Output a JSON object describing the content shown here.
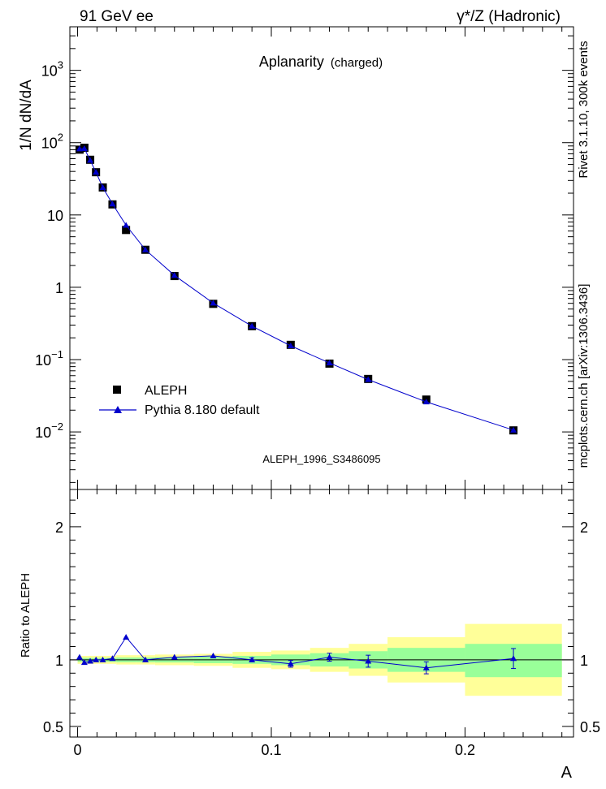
{
  "header": {
    "left": "91 GeV ee",
    "right_prefix": "γ*/Z",
    "right_suffix": "(Hadronic)"
  },
  "side": {
    "rivet": "Rivet 3.1.10,  300k events",
    "mcplots": "mcplots.cern.ch [arXiv:1306.3436]"
  },
  "analysis_id": "ALEPH_1996_S3486095",
  "chart_data": [
    {
      "type": "scatter",
      "title": "Aplanarity",
      "title_sub": "(charged)",
      "ylabel": "1/N dN/dA",
      "y_scale": "log",
      "ylim": [
        0.0016,
        4000
      ],
      "xlim": [
        -0.004,
        0.256
      ],
      "yticks": [
        {
          "v": 0.01,
          "mant": "10",
          "exp": "−2"
        },
        {
          "v": 0.1,
          "mant": "10",
          "exp": "−1"
        },
        {
          "v": 1,
          "mant": "1",
          "exp": ""
        },
        {
          "v": 10,
          "mant": "10",
          "exp": ""
        },
        {
          "v": 100,
          "mant": "10",
          "exp": "2"
        },
        {
          "v": 1000,
          "mant": "10",
          "exp": "3"
        }
      ],
      "legend_position": "bottom-left",
      "series": [
        {
          "name": "ALEPH",
          "color": "#000000",
          "marker": "square",
          "x": [
            0.001,
            0.0035,
            0.0065,
            0.0095,
            0.013,
            0.018,
            0.025,
            0.035,
            0.05,
            0.07,
            0.09,
            0.11,
            0.13,
            0.15,
            0.18,
            0.225
          ],
          "y": [
            80,
            85,
            58,
            39,
            24,
            14,
            6.2,
            3.3,
            1.43,
            0.59,
            0.29,
            0.16,
            0.088,
            0.054,
            0.028,
            0.0105
          ]
        },
        {
          "name": "Pythia 8.180 default",
          "color": "#0000cc",
          "marker": "triangle",
          "x": [
            0.001,
            0.0035,
            0.0065,
            0.0095,
            0.013,
            0.018,
            0.025,
            0.035,
            0.05,
            0.07,
            0.09,
            0.11,
            0.13,
            0.15,
            0.18,
            0.225
          ],
          "y": [
            82,
            83,
            57,
            39,
            24,
            14.2,
            7.2,
            3.3,
            1.46,
            0.605,
            0.29,
            0.155,
            0.09,
            0.053,
            0.026,
            0.0106
          ]
        }
      ]
    },
    {
      "type": "line",
      "ylabel": "Ratio to ALEPH",
      "ylim": [
        0.42,
        2.28
      ],
      "xlim": [
        -0.004,
        0.256
      ],
      "xlabel": "A",
      "xticks": [
        {
          "v": 0,
          "label": "0"
        },
        {
          "v": 0.1,
          "label": "0.1"
        },
        {
          "v": 0.2,
          "label": "0.2"
        }
      ],
      "yticks": [
        {
          "v": 0.5,
          "label": "0.5"
        },
        {
          "v": 1,
          "label": "1"
        },
        {
          "v": 2,
          "label": "2"
        }
      ],
      "bands": {
        "yellow_color": "#ffff99",
        "green_color": "#99ff99",
        "bins": [
          {
            "lo": 0.0,
            "hi": 0.002,
            "y1": 0.97,
            "y2": 1.03,
            "g1": 0.985,
            "g2": 1.015
          },
          {
            "lo": 0.002,
            "hi": 0.005,
            "y1": 0.97,
            "y2": 1.03,
            "g1": 0.985,
            "g2": 1.015
          },
          {
            "lo": 0.005,
            "hi": 0.008,
            "y1": 0.97,
            "y2": 1.03,
            "g1": 0.985,
            "g2": 1.015
          },
          {
            "lo": 0.008,
            "hi": 0.011,
            "y1": 0.97,
            "y2": 1.03,
            "g1": 0.985,
            "g2": 1.015
          },
          {
            "lo": 0.011,
            "hi": 0.015,
            "y1": 0.97,
            "y2": 1.03,
            "g1": 0.985,
            "g2": 1.015
          },
          {
            "lo": 0.015,
            "hi": 0.02,
            "y1": 0.97,
            "y2": 1.03,
            "g1": 0.985,
            "g2": 1.015
          },
          {
            "lo": 0.02,
            "hi": 0.03,
            "y1": 0.965,
            "y2": 1.035,
            "g1": 0.982,
            "g2": 1.018
          },
          {
            "lo": 0.03,
            "hi": 0.04,
            "y1": 0.965,
            "y2": 1.035,
            "g1": 0.982,
            "g2": 1.018
          },
          {
            "lo": 0.04,
            "hi": 0.06,
            "y1": 0.96,
            "y2": 1.04,
            "g1": 0.98,
            "g2": 1.02
          },
          {
            "lo": 0.06,
            "hi": 0.08,
            "y1": 0.955,
            "y2": 1.045,
            "g1": 0.975,
            "g2": 1.025
          },
          {
            "lo": 0.08,
            "hi": 0.1,
            "y1": 0.94,
            "y2": 1.06,
            "g1": 0.97,
            "g2": 1.03
          },
          {
            "lo": 0.1,
            "hi": 0.12,
            "y1": 0.93,
            "y2": 1.07,
            "g1": 0.96,
            "g2": 1.04
          },
          {
            "lo": 0.12,
            "hi": 0.14,
            "y1": 0.91,
            "y2": 1.09,
            "g1": 0.95,
            "g2": 1.05
          },
          {
            "lo": 0.14,
            "hi": 0.16,
            "y1": 0.88,
            "y2": 1.12,
            "g1": 0.935,
            "g2": 1.065
          },
          {
            "lo": 0.16,
            "hi": 0.2,
            "y1": 0.83,
            "y2": 1.17,
            "g1": 0.91,
            "g2": 1.09
          },
          {
            "lo": 0.2,
            "hi": 0.25,
            "y1": 0.73,
            "y2": 1.27,
            "g1": 0.87,
            "g2": 1.12
          }
        ]
      },
      "series": [
        {
          "name": "Pythia 8.180 default / ALEPH",
          "color": "#0000cc",
          "x": [
            0.001,
            0.0035,
            0.0065,
            0.0095,
            0.013,
            0.018,
            0.025,
            0.035,
            0.05,
            0.07,
            0.09,
            0.11,
            0.13,
            0.15,
            0.18,
            0.225
          ],
          "y": [
            1.02,
            0.98,
            0.99,
            1.0,
            1.0,
            1.01,
            1.17,
            1.0,
            1.02,
            1.03,
            1.0,
            0.97,
            1.02,
            0.99,
            0.94,
            1.01
          ],
          "err": [
            0.01,
            0.01,
            0.01,
            0.01,
            0.01,
            0.01,
            0.01,
            0.01,
            0.01,
            0.01,
            0.015,
            0.025,
            0.03,
            0.045,
            0.045,
            0.075
          ]
        }
      ]
    }
  ]
}
